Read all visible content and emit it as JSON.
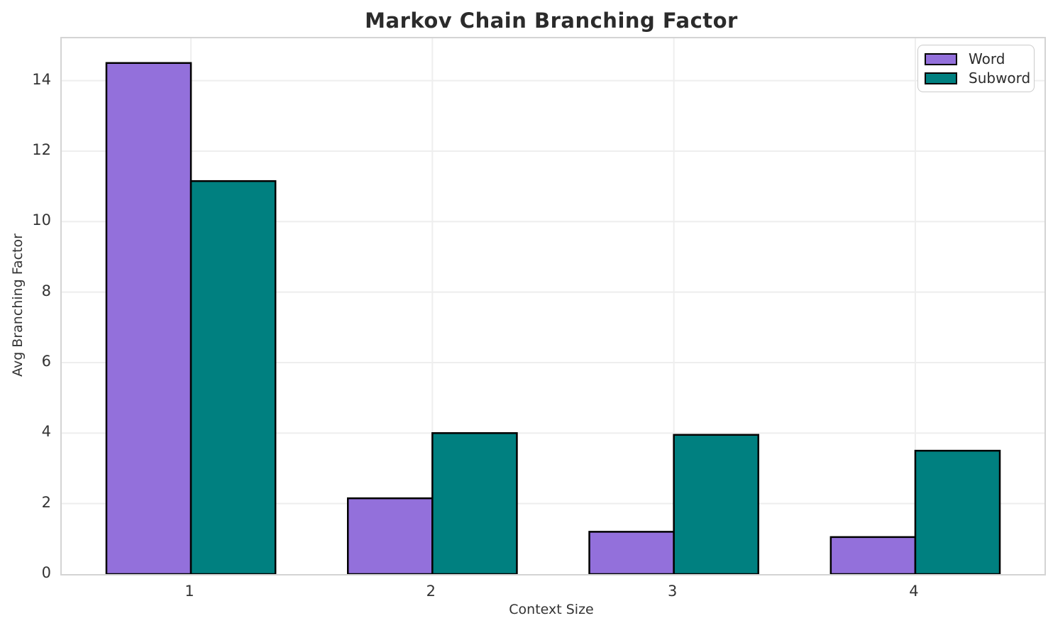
{
  "title": "Markov Chain Branching Factor",
  "axes": {
    "x_label": "Context Size",
    "y_label": "Avg Branching Factor"
  },
  "legend": {
    "position": "upper right",
    "items": [
      {
        "label": "Word",
        "color": "#9370DB"
      },
      {
        "label": "Subword",
        "color": "#008080"
      }
    ]
  },
  "chart_data": {
    "type": "bar",
    "title": "Markov Chain Branching Factor",
    "xlabel": "Context Size",
    "ylabel": "Avg Branching Factor",
    "categories": [
      "1",
      "2",
      "3",
      "4"
    ],
    "series": [
      {
        "name": "Word",
        "color": "#9370DB",
        "values": [
          14.5,
          2.15,
          1.2,
          1.05
        ]
      },
      {
        "name": "Subword",
        "color": "#008080",
        "values": [
          11.15,
          4.0,
          3.95,
          3.5
        ]
      }
    ],
    "ylim": [
      0,
      15.2
    ],
    "yticks": [
      0,
      2,
      4,
      6,
      8,
      10,
      12,
      14
    ],
    "grid": true,
    "grid_color": "#eeeeee",
    "bar_edge_color": "#000000",
    "legend_position": "upper right"
  }
}
